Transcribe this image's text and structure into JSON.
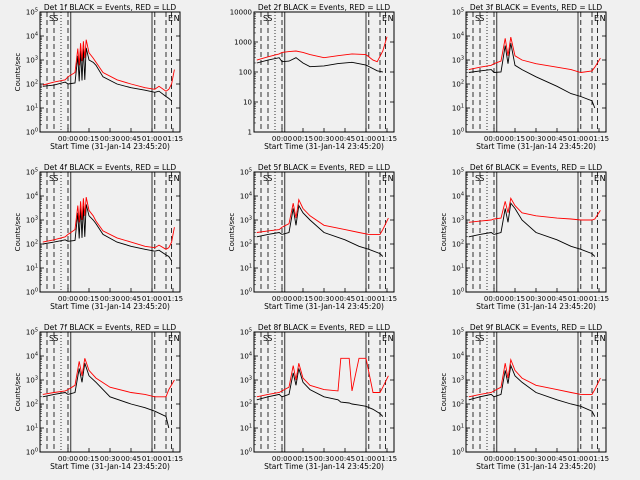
{
  "figure": {
    "background": "#f0f0f0",
    "x_axis_label": "Start Time (31-Jan-14 23:45:20)",
    "y_axis_label": "Counts/sec",
    "x_tick_labels": [
      "00:00",
      "00:15",
      "00:30",
      "00:45",
      "01:00",
      "01:15"
    ],
    "line_colors": {
      "events": "#000000",
      "lld": "#ff0000"
    },
    "panel_letters": [
      "S",
      "S",
      "E",
      "N"
    ]
  },
  "chart_data": [
    {
      "type": "line",
      "title": "Det 1f BLACK = Events, RED = LLD",
      "xlabel": "Start Time (31-Jan-14 23:45:20)",
      "ylabel": "Counts/sec",
      "x_ticks": [
        "00:00",
        "00:15",
        "00:30",
        "00:45",
        "01:00",
        "01:15"
      ],
      "y_ticks": [
        "10^0",
        "10^1",
        "10^2",
        "10^3",
        "10^4",
        "10^5"
      ],
      "ylim": [
        1,
        100000
      ],
      "log_y": true,
      "grid": false,
      "x_minutes": [
        -18,
        -10,
        -2,
        0,
        5,
        7,
        8,
        9,
        10,
        11,
        12,
        13,
        15,
        18,
        20,
        25,
        35,
        45,
        55,
        62,
        65,
        70,
        72,
        74,
        76
      ],
      "series": [
        {
          "name": "BLACK = Events",
          "values": [
            80,
            90,
            120,
            100,
            110,
            1500,
            130,
            2500,
            140,
            3000,
            150,
            3200,
            1000,
            800,
            600,
            200,
            100,
            70,
            55,
            45,
            50,
            30,
            25,
            20,
            null
          ]
        },
        {
          "name": "RED = LLD",
          "values": [
            90,
            120,
            150,
            200,
            300,
            3000,
            600,
            5000,
            900,
            6000,
            1200,
            7000,
            2000,
            1200,
            800,
            300,
            150,
            100,
            70,
            60,
            80,
            50,
            60,
            100,
            400
          ]
        }
      ]
    },
    {
      "type": "line",
      "title": "Det 2f BLACK = Events, RED = LLD",
      "xlabel": "Start Time (31-Jan-14 23:45:20)",
      "ylabel": "",
      "x_ticks": [
        "00:00",
        "00:15",
        "00:30",
        "00:45",
        "01:00",
        "01:15"
      ],
      "y_ticks": [
        "1",
        "10",
        "100",
        "1000",
        "10000"
      ],
      "ylim": [
        1,
        10000
      ],
      "log_y": true,
      "grid": false,
      "x_minutes": [
        -18,
        -10,
        -2,
        0,
        5,
        10,
        15,
        20,
        30,
        40,
        50,
        60,
        65,
        68,
        72,
        75
      ],
      "series": [
        {
          "name": "BLACK = Events",
          "values": [
            200,
            250,
            300,
            220,
            230,
            300,
            200,
            150,
            160,
            190,
            210,
            170,
            130,
            110,
            100,
            null
          ]
        },
        {
          "name": "RED = LLD",
          "values": [
            250,
            320,
            400,
            450,
            480,
            500,
            450,
            380,
            300,
            350,
            400,
            380,
            250,
            220,
            500,
            1500
          ]
        }
      ]
    },
    {
      "type": "line",
      "title": "Det 3f BLACK = Events, RED = LLD",
      "xlabel": "Start Time (31-Jan-14 23:45:20)",
      "ylabel": "",
      "x_ticks": [
        "00:00",
        "00:15",
        "00:30",
        "00:45",
        "01:00",
        "01:15"
      ],
      "y_ticks": [
        "10^0",
        "10^1",
        "10^2",
        "10^3",
        "10^4",
        "10^5"
      ],
      "ylim": [
        1,
        100000
      ],
      "log_y": true,
      "grid": false,
      "x_minutes": [
        -18,
        -10,
        -2,
        0,
        5,
        8,
        10,
        12,
        15,
        20,
        30,
        45,
        55,
        62,
        70,
        72,
        76
      ],
      "series": [
        {
          "name": "BLACK = Events",
          "values": [
            300,
            350,
            400,
            300,
            320,
            4000,
            700,
            5000,
            600,
            400,
            200,
            80,
            40,
            30,
            20,
            10,
            null
          ]
        },
        {
          "name": "RED = LLD",
          "values": [
            400,
            500,
            600,
            700,
            900,
            8000,
            1500,
            9000,
            1500,
            1000,
            700,
            500,
            400,
            300,
            350,
            500,
            1200
          ]
        }
      ]
    },
    {
      "type": "line",
      "title": "Det 4f BLACK = Events, RED = LLD",
      "xlabel": "Start Time (31-Jan-14 23:45:20)",
      "ylabel": "Counts/sec",
      "x_ticks": [
        "00:00",
        "00:15",
        "00:30",
        "00:45",
        "01:00",
        "01:15"
      ],
      "y_ticks": [
        "10^0",
        "10^1",
        "10^2",
        "10^3",
        "10^4",
        "10^5"
      ],
      "ylim": [
        1,
        100000
      ],
      "log_y": true,
      "grid": false,
      "x_minutes": [
        -18,
        -10,
        -2,
        0,
        5,
        7,
        8,
        9,
        10,
        11,
        12,
        13,
        15,
        18,
        20,
        25,
        35,
        45,
        55,
        62,
        65,
        70,
        72,
        74,
        76
      ],
      "series": [
        {
          "name": "BLACK = Events",
          "values": [
            100,
            120,
            150,
            130,
            140,
            2000,
            170,
            3500,
            180,
            4000,
            200,
            4500,
            1500,
            1000,
            700,
            250,
            120,
            80,
            60,
            50,
            55,
            35,
            30,
            20,
            null
          ]
        },
        {
          "name": "RED = LLD",
          "values": [
            120,
            150,
            200,
            250,
            400,
            4000,
            800,
            6000,
            1000,
            8000,
            1500,
            9000,
            2500,
            1500,
            900,
            350,
            180,
            120,
            80,
            70,
            90,
            60,
            70,
            120,
            500
          ]
        }
      ]
    },
    {
      "type": "line",
      "title": "Det 5f BLACK = Events, RED = LLD",
      "xlabel": "Start Time (31-Jan-14 23:45:20)",
      "ylabel": "Counts/sec",
      "x_ticks": [
        "00:00",
        "00:15",
        "00:30",
        "00:45",
        "01:00",
        "01:15"
      ],
      "y_ticks": [
        "10^0",
        "10^1",
        "10^2",
        "10^3",
        "10^4",
        "10^5"
      ],
      "ylim": [
        1,
        100000
      ],
      "log_y": true,
      "grid": false,
      "x_minutes": [
        -18,
        -10,
        -2,
        0,
        5,
        8,
        10,
        12,
        15,
        20,
        30,
        45,
        55,
        62,
        70,
        72,
        76
      ],
      "series": [
        {
          "name": "BLACK = Events",
          "values": [
            200,
            250,
            300,
            250,
            300,
            3000,
            600,
            4000,
            2000,
            1000,
            300,
            150,
            80,
            60,
            40,
            30,
            null
          ]
        },
        {
          "name": "RED = LLD",
          "values": [
            300,
            350,
            400,
            500,
            700,
            5000,
            1200,
            7000,
            3000,
            1500,
            600,
            400,
            300,
            250,
            250,
            400,
            1200
          ]
        }
      ]
    },
    {
      "type": "line",
      "title": "Det 6f BLACK = Events, RED = LLD",
      "xlabel": "Start Time (31-Jan-14 23:45:20)",
      "ylabel": "Counts/sec",
      "x_ticks": [
        "00:00",
        "00:15",
        "00:30",
        "00:45",
        "01:00",
        "01:15"
      ],
      "y_ticks": [
        "10^0",
        "10^1",
        "10^2",
        "10^3",
        "10^4",
        "10^5"
      ],
      "ylim": [
        1,
        100000
      ],
      "log_y": true,
      "grid": false,
      "x_minutes": [
        -18,
        -10,
        -2,
        0,
        5,
        8,
        10,
        12,
        15,
        20,
        30,
        45,
        55,
        62,
        70,
        72,
        76
      ],
      "series": [
        {
          "name": "BLACK = Events",
          "values": [
            200,
            250,
            300,
            250,
            300,
            3000,
            800,
            5000,
            3000,
            1000,
            300,
            150,
            80,
            60,
            40,
            30,
            null
          ]
        },
        {
          "name": "RED = LLD",
          "values": [
            800,
            900,
            1000,
            1100,
            1200,
            6000,
            2000,
            8000,
            4000,
            2000,
            1500,
            1200,
            1100,
            1000,
            1000,
            1100,
            2500
          ]
        }
      ]
    },
    {
      "type": "line",
      "title": "Det 7f BLACK = Events, RED = LLD",
      "xlabel": "Start Time (31-Jan-14 23:45:20)",
      "ylabel": "Counts/sec",
      "x_ticks": [
        "00:00",
        "00:15",
        "00:30",
        "00:45",
        "01:00",
        "01:15"
      ],
      "y_ticks": [
        "10^0",
        "10^1",
        "10^2",
        "10^3",
        "10^4",
        "10^5"
      ],
      "ylim": [
        1,
        100000
      ],
      "log_y": true,
      "grid": false,
      "x_minutes": [
        -18,
        -10,
        -2,
        0,
        5,
        8,
        10,
        12,
        15,
        20,
        30,
        45,
        55,
        62,
        70,
        72,
        76
      ],
      "series": [
        {
          "name": "BLACK = Events",
          "values": [
            200,
            250,
            300,
            250,
            300,
            3000,
            800,
            5000,
            1500,
            800,
            200,
            100,
            70,
            50,
            30,
            10,
            null
          ]
        },
        {
          "name": "RED = LLD",
          "values": [
            250,
            300,
            350,
            400,
            600,
            6000,
            1500,
            8000,
            2500,
            1200,
            500,
            300,
            250,
            200,
            200,
            400,
            1000
          ]
        }
      ]
    },
    {
      "type": "line",
      "title": "Det 8f BLACK = Events, RED = LLD",
      "xlabel": "Start Time (31-Jan-14 23:45:20)",
      "ylabel": "",
      "x_ticks": [
        "00:00",
        "00:15",
        "00:30",
        "00:45",
        "01:00",
        "01:15"
      ],
      "y_ticks": [
        "10^0",
        "10^1",
        "10^2",
        "10^3",
        "10^4",
        "10^5"
      ],
      "ylim": [
        1,
        100000
      ],
      "log_y": true,
      "grid": false,
      "x_minutes": [
        -18,
        -10,
        -2,
        0,
        5,
        8,
        10,
        12,
        15,
        20,
        30,
        40,
        42,
        48,
        50,
        55,
        60,
        65,
        70,
        72,
        76
      ],
      "series": [
        {
          "name": "BLACK = Events",
          "values": [
            150,
            200,
            250,
            200,
            250,
            2000,
            600,
            3000,
            800,
            400,
            200,
            150,
            120,
            110,
            100,
            90,
            80,
            60,
            40,
            30,
            null
          ]
        },
        {
          "name": "RED = LLD",
          "values": [
            200,
            250,
            300,
            350,
            500,
            4000,
            1000,
            5000,
            1200,
            600,
            400,
            350,
            8000,
            8000,
            350,
            8000,
            8000,
            300,
            300,
            500,
            1500
          ]
        }
      ]
    },
    {
      "type": "line",
      "title": "Det 9f BLACK = Events, RED = LLD",
      "xlabel": "Start Time (31-Jan-14 23:45:20)",
      "ylabel": "Counts/sec",
      "x_ticks": [
        "00:00",
        "00:15",
        "00:30",
        "00:45",
        "01:00",
        "01:15"
      ],
      "y_ticks": [
        "10^0",
        "10^1",
        "10^2",
        "10^3",
        "10^4",
        "10^5"
      ],
      "ylim": [
        1,
        100000
      ],
      "log_y": true,
      "grid": false,
      "x_minutes": [
        -18,
        -10,
        -2,
        0,
        5,
        8,
        10,
        12,
        15,
        20,
        30,
        45,
        55,
        62,
        70,
        72,
        76
      ],
      "series": [
        {
          "name": "BLACK = Events",
          "values": [
            150,
            200,
            250,
            200,
            250,
            2500,
            700,
            4000,
            1500,
            800,
            300,
            150,
            100,
            80,
            50,
            30,
            null
          ]
        },
        {
          "name": "RED = LLD",
          "values": [
            200,
            250,
            300,
            350,
            500,
            5000,
            1200,
            7000,
            2500,
            1200,
            600,
            400,
            300,
            250,
            250,
            400,
            1200
          ]
        }
      ]
    }
  ]
}
